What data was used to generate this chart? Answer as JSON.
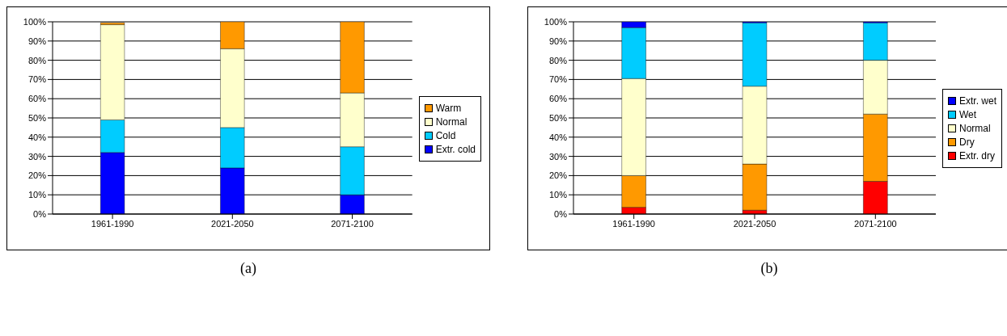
{
  "chart_data": [
    {
      "type": "bar",
      "stacked": true,
      "categories": [
        "1961-1990",
        "2021-2050",
        "2071-2100"
      ],
      "ylim": [
        0,
        100
      ],
      "yticks": [
        {
          "value": 0,
          "label": "0%"
        },
        {
          "value": 10,
          "label": "10%"
        },
        {
          "value": 20,
          "label": "20%"
        },
        {
          "value": 30,
          "label": "30%"
        },
        {
          "value": 40,
          "label": "40%"
        },
        {
          "value": 50,
          "label": "50%"
        },
        {
          "value": 60,
          "label": "60%"
        },
        {
          "value": 70,
          "label": "70%"
        },
        {
          "value": 80,
          "label": "80%"
        },
        {
          "value": 90,
          "label": "90%"
        },
        {
          "value": 100,
          "label": "100%"
        }
      ],
      "grid": "y",
      "legend": "right",
      "annotations": [
        "(a)"
      ],
      "series": [
        {
          "name": "Extr. cold",
          "color": "#0000ff",
          "values": [
            32,
            24,
            10
          ]
        },
        {
          "name": "Cold",
          "color": "#00ccff",
          "values": [
            17,
            21,
            25
          ]
        },
        {
          "name": "Normal",
          "color": "#ffffcc",
          "values": [
            49.5,
            41,
            28
          ]
        },
        {
          "name": "Warm",
          "color": "#ff9900",
          "values": [
            1,
            14,
            37
          ]
        }
      ]
    },
    {
      "type": "bar",
      "stacked": true,
      "categories": [
        "1961-1990",
        "2021-2050",
        "2071-2100"
      ],
      "ylim": [
        0,
        100
      ],
      "yticks": [
        {
          "value": 0,
          "label": "0%"
        },
        {
          "value": 10,
          "label": "10%"
        },
        {
          "value": 20,
          "label": "20%"
        },
        {
          "value": 30,
          "label": "30%"
        },
        {
          "value": 40,
          "label": "40%"
        },
        {
          "value": 50,
          "label": "50%"
        },
        {
          "value": 60,
          "label": "60%"
        },
        {
          "value": 70,
          "label": "70%"
        },
        {
          "value": 80,
          "label": "80%"
        },
        {
          "value": 90,
          "label": "90%"
        },
        {
          "value": 100,
          "label": "100%"
        }
      ],
      "grid": "y",
      "legend": "right",
      "annotations": [
        "(b)"
      ],
      "series": [
        {
          "name": "Extr. dry",
          "color": "#ff0000",
          "values": [
            3.5,
            2,
            17
          ]
        },
        {
          "name": "Dry",
          "color": "#ff9900",
          "values": [
            16.5,
            24,
            35
          ]
        },
        {
          "name": "Normal",
          "color": "#ffffcc",
          "values": [
            50.5,
            40.5,
            28
          ]
        },
        {
          "name": "Wet",
          "color": "#00ccff",
          "values": [
            26.5,
            33,
            19.5
          ]
        },
        {
          "name": "Extr. wet",
          "color": "#0000ff",
          "values": [
            3,
            0.5,
            0.5
          ]
        }
      ]
    }
  ]
}
